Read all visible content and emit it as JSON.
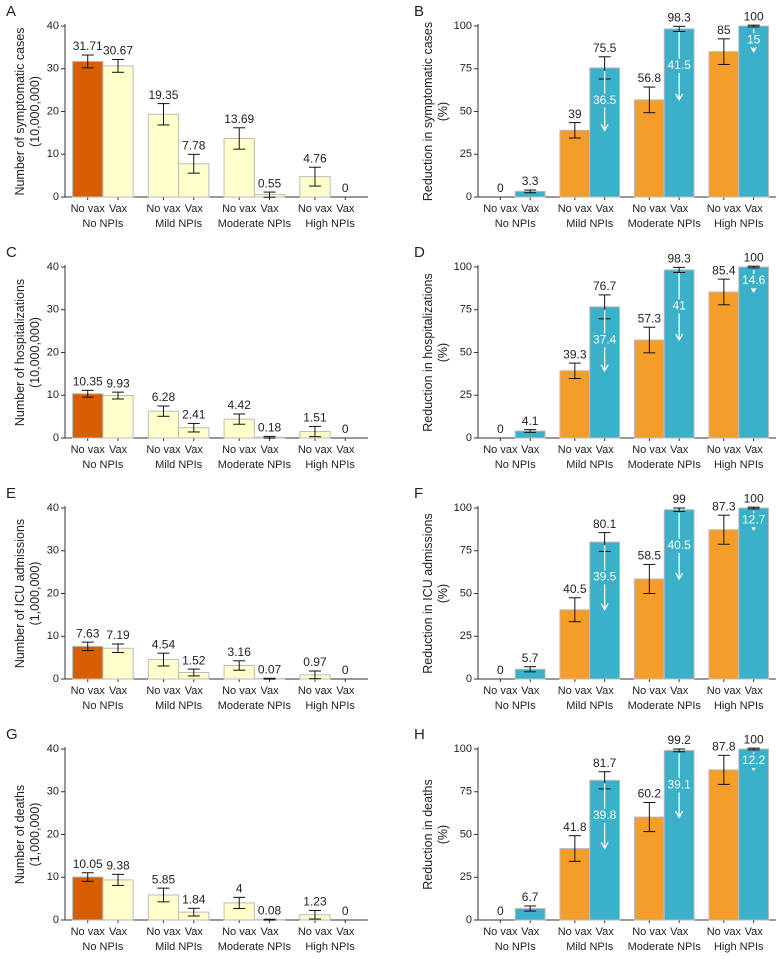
{
  "chart_data": [
    {
      "panel": "A",
      "type": "bar",
      "ylabel": [
        "Number of symptomatic cases",
        "(10,000,000)"
      ],
      "categories": [
        "No vax",
        "Vax",
        "No vax",
        "Vax",
        "No vax",
        "Vax",
        "No vax",
        "Vax"
      ],
      "groups": [
        "No NPIs",
        "Mild NPIs",
        "Moderate NPIs",
        "High NPIs"
      ],
      "values": [
        31.71,
        30.67,
        19.35,
        7.78,
        13.69,
        0.55,
        4.76,
        0
      ],
      "errors": [
        1.5,
        1.5,
        2.5,
        2.2,
        2.5,
        0.6,
        2.2,
        0
      ],
      "colors": [
        "#d55e00",
        "#ffffcc",
        "#ffffcc",
        "#ffffcc",
        "#ffffcc",
        "#ffffcc",
        "#ffffcc",
        "#ffffcc"
      ],
      "ylim": [
        0,
        40
      ],
      "yticks": [
        0,
        10,
        20,
        30,
        40
      ]
    },
    {
      "panel": "B",
      "type": "bar",
      "ylabel": [
        "Reduction in symptomatic cases",
        "(%)"
      ],
      "categories": [
        "No vax",
        "Vax",
        "No vax",
        "Vax",
        "No vax",
        "Vax",
        "No vax",
        "Vax"
      ],
      "groups": [
        "No NPIs",
        "Mild NPIs",
        "Moderate NPIs",
        "High NPIs"
      ],
      "values": [
        0,
        3.3,
        39,
        75.5,
        56.8,
        98.3,
        85,
        100
      ],
      "errors": [
        0,
        0.8,
        4.5,
        6.5,
        7.5,
        1.5,
        7.5,
        0.5
      ],
      "arrows": [
        null,
        null,
        null,
        36.5,
        null,
        41.5,
        null,
        15
      ],
      "colors": [
        "#f59d2a",
        "#3bb0c9",
        "#f59d2a",
        "#3bb0c9",
        "#f59d2a",
        "#3bb0c9",
        "#f59d2a",
        "#3bb0c9"
      ],
      "ylim": [
        0,
        100
      ],
      "yticks": [
        0,
        25,
        50,
        75,
        100
      ]
    },
    {
      "panel": "C",
      "type": "bar",
      "ylabel": [
        "Number of hospitalizations",
        "(10,000,000)"
      ],
      "categories": [
        "No vax",
        "Vax",
        "No vax",
        "Vax",
        "No vax",
        "Vax",
        "No vax",
        "Vax"
      ],
      "groups": [
        "No NPIs",
        "Mild NPIs",
        "Moderate NPIs",
        "High NPIs"
      ],
      "values": [
        10.35,
        9.93,
        6.28,
        2.41,
        4.42,
        0.18,
        1.51,
        0
      ],
      "errors": [
        0.8,
        0.8,
        1.2,
        1,
        1.2,
        0.2,
        1.2,
        0
      ],
      "colors": [
        "#d55e00",
        "#ffffcc",
        "#ffffcc",
        "#ffffcc",
        "#ffffcc",
        "#ffffcc",
        "#ffffcc",
        "#ffffcc"
      ],
      "ylim": [
        0,
        40
      ],
      "yticks": [
        0,
        10,
        20,
        30,
        40
      ]
    },
    {
      "panel": "D",
      "type": "bar",
      "ylabel": [
        "Reduction in hospitalizations",
        "(%)"
      ],
      "categories": [
        "No vax",
        "Vax",
        "No vax",
        "Vax",
        "No vax",
        "Vax",
        "No vax",
        "Vax"
      ],
      "groups": [
        "No NPIs",
        "Mild NPIs",
        "Moderate NPIs",
        "High NPIs"
      ],
      "values": [
        0,
        4.1,
        39.3,
        76.7,
        57.3,
        98.3,
        85.4,
        100
      ],
      "errors": [
        0,
        0.8,
        4.5,
        7,
        7.5,
        1.5,
        7.5,
        0.5
      ],
      "arrows": [
        null,
        null,
        null,
        37.4,
        null,
        41,
        null,
        14.6
      ],
      "colors": [
        "#f59d2a",
        "#3bb0c9",
        "#f59d2a",
        "#3bb0c9",
        "#f59d2a",
        "#3bb0c9",
        "#f59d2a",
        "#3bb0c9"
      ],
      "ylim": [
        0,
        100
      ],
      "yticks": [
        0,
        25,
        50,
        75,
        100
      ]
    },
    {
      "panel": "E",
      "type": "bar",
      "ylabel": [
        "Number of ICU admissions",
        "(1,000,000)"
      ],
      "categories": [
        "No vax",
        "Vax",
        "No vax",
        "Vax",
        "No vax",
        "Vax",
        "No vax",
        "Vax"
      ],
      "groups": [
        "No NPIs",
        "Mild NPIs",
        "Moderate NPIs",
        "High NPIs"
      ],
      "values": [
        7.63,
        7.19,
        4.54,
        1.52,
        3.16,
        0.07,
        0.97,
        0
      ],
      "errors": [
        1,
        1,
        1.5,
        0.8,
        1.1,
        0.1,
        0.9,
        0
      ],
      "colors": [
        "#d55e00",
        "#ffffcc",
        "#ffffcc",
        "#ffffcc",
        "#ffffcc",
        "#ffffcc",
        "#ffffcc",
        "#ffffcc"
      ],
      "ylim": [
        0,
        40
      ],
      "yticks": [
        0,
        10,
        20,
        30,
        40
      ]
    },
    {
      "panel": "F",
      "type": "bar",
      "ylabel": [
        "Reduction in ICU admissions",
        "(%)"
      ],
      "categories": [
        "No vax",
        "Vax",
        "No vax",
        "Vax",
        "No vax",
        "Vax",
        "No vax",
        "Vax"
      ],
      "groups": [
        "No NPIs",
        "Mild NPIs",
        "Moderate NPIs",
        "High NPIs"
      ],
      "values": [
        0,
        5.7,
        40.5,
        80.1,
        58.5,
        99,
        87.3,
        100
      ],
      "errors": [
        0,
        1.5,
        7,
        5.5,
        8.5,
        1,
        8.5,
        0.5
      ],
      "arrows": [
        null,
        null,
        null,
        39.5,
        null,
        40.5,
        null,
        12.7
      ],
      "colors": [
        "#f59d2a",
        "#3bb0c9",
        "#f59d2a",
        "#3bb0c9",
        "#f59d2a",
        "#3bb0c9",
        "#f59d2a",
        "#3bb0c9"
      ],
      "ylim": [
        0,
        100
      ],
      "yticks": [
        0,
        25,
        50,
        75,
        100
      ]
    },
    {
      "panel": "G",
      "type": "bar",
      "ylabel": [
        "Number of deaths",
        "(1,000,000)"
      ],
      "categories": [
        "No vax",
        "Vax",
        "No vax",
        "Vax",
        "No vax",
        "Vax",
        "No vax",
        "Vax"
      ],
      "groups": [
        "No NPIs",
        "Mild NPIs",
        "Moderate NPIs",
        "High NPIs"
      ],
      "values": [
        10.05,
        9.38,
        5.85,
        1.84,
        4,
        0.08,
        1.23,
        0
      ],
      "errors": [
        1,
        1.3,
        1.6,
        0.9,
        1.3,
        0.1,
        1,
        0
      ],
      "colors": [
        "#d55e00",
        "#ffffcc",
        "#ffffcc",
        "#ffffcc",
        "#ffffcc",
        "#ffffcc",
        "#ffffcc",
        "#ffffcc"
      ],
      "ylim": [
        0,
        40
      ],
      "yticks": [
        0,
        10,
        20,
        30,
        40
      ]
    },
    {
      "panel": "H",
      "type": "bar",
      "ylabel": [
        "Reduction in deaths",
        "(%)"
      ],
      "categories": [
        "No vax",
        "Vax",
        "No vax",
        "Vax",
        "No vax",
        "Vax",
        "No vax",
        "Vax"
      ],
      "groups": [
        "No NPIs",
        "Mild NPIs",
        "Moderate NPIs",
        "High NPIs"
      ],
      "values": [
        0,
        6.7,
        41.8,
        81.7,
        60.2,
        99.2,
        87.8,
        100
      ],
      "errors": [
        0,
        1.5,
        7.5,
        5,
        8.5,
        0.8,
        8.5,
        0.5
      ],
      "arrows": [
        null,
        null,
        null,
        39.8,
        null,
        39.1,
        null,
        12.2
      ],
      "colors": [
        "#f59d2a",
        "#3bb0c9",
        "#f59d2a",
        "#3bb0c9",
        "#f59d2a",
        "#3bb0c9",
        "#f59d2a",
        "#3bb0c9"
      ],
      "ylim": [
        0,
        100
      ],
      "yticks": [
        0,
        25,
        50,
        75,
        100
      ]
    }
  ]
}
